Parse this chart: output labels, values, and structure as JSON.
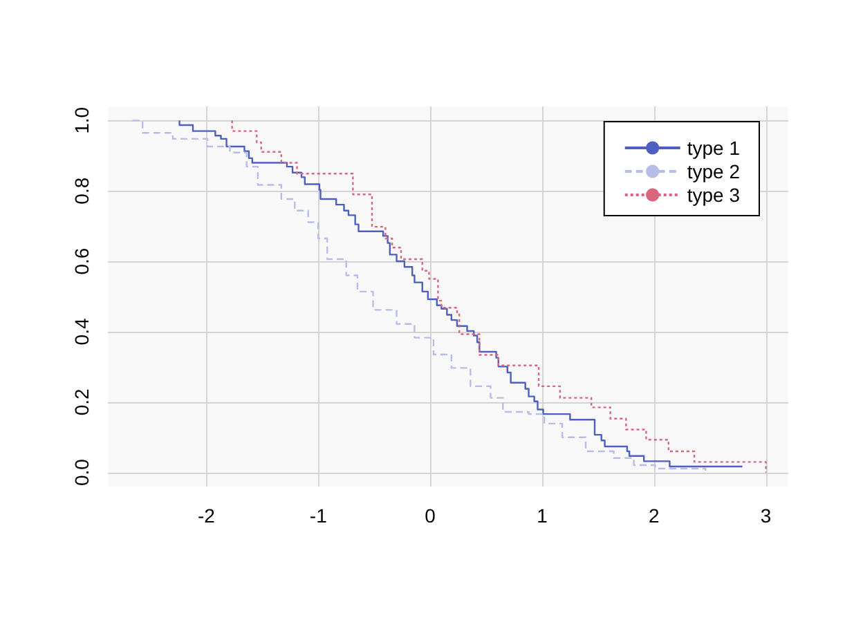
{
  "chart_data": {
    "type": "step",
    "xlim": [
      -2.88,
      3.2
    ],
    "xticks": [
      -2,
      -1,
      0,
      1,
      2,
      3
    ],
    "ylim": [
      -0.04,
      1.04
    ],
    "yticks": [
      {
        "value": 0,
        "label": "0.0"
      },
      0.2,
      0.4,
      0.6,
      0.8,
      {
        "value": 1,
        "label": "1.0"
      }
    ],
    "grid": true,
    "legend": "top right",
    "series": [
      {
        "name": "type 1",
        "color": "#4f5fc0",
        "line_style": "solid",
        "x": [
          -2.24,
          -2.24,
          -2.12,
          -1.92,
          -1.87,
          -1.82,
          -1.66,
          -1.62,
          -1.59,
          -1.28,
          -1.23,
          -1.15,
          -1.12,
          -0.99,
          -0.98,
          -0.84,
          -0.77,
          -0.73,
          -0.67,
          -0.64,
          -0.42,
          -0.38,
          -0.36,
          -0.3,
          -0.23,
          -0.16,
          -0.14,
          -0.07,
          -0.02,
          0.06,
          0.1,
          0.15,
          0.19,
          0.24,
          0.33,
          0.39,
          0.42,
          0.44,
          0.59,
          0.61,
          0.69,
          0.72,
          0.85,
          0.88,
          0.93,
          0.96,
          1.01,
          1.25,
          1.47,
          1.53,
          1.56,
          1.76,
          1.78,
          1.91,
          2.14,
          2.79
        ],
        "values": [
          1.0,
          0.987,
          0.97,
          0.957,
          0.948,
          0.926,
          0.913,
          0.893,
          0.88,
          0.869,
          0.852,
          0.839,
          0.819,
          0.803,
          0.777,
          0.761,
          0.744,
          0.731,
          0.705,
          0.685,
          0.672,
          0.652,
          0.619,
          0.6,
          0.584,
          0.56,
          0.54,
          0.514,
          0.492,
          0.475,
          0.465,
          0.448,
          0.433,
          0.416,
          0.402,
          0.389,
          0.37,
          0.343,
          0.326,
          0.301,
          0.284,
          0.255,
          0.238,
          0.216,
          0.202,
          0.179,
          0.166,
          0.15,
          0.107,
          0.091,
          0.074,
          0.06,
          0.047,
          0.032,
          0.017,
          0.017
        ]
      },
      {
        "name": "type 2",
        "color": "#b8bde8",
        "line_style": "dashed",
        "x": [
          -2.66,
          -2.57,
          -2.3,
          -1.99,
          -1.79,
          -1.64,
          -1.54,
          -1.33,
          -1.21,
          -1.09,
          -1.0,
          -0.92,
          -0.75,
          -0.65,
          -0.51,
          -0.3,
          -0.14,
          0.03,
          0.19,
          0.36,
          0.54,
          0.65,
          0.88,
          1.02,
          1.18,
          1.39,
          1.64,
          1.82,
          2.01,
          2.46
        ],
        "values": [
          1.0,
          0.965,
          0.948,
          0.926,
          0.909,
          0.869,
          0.817,
          0.777,
          0.744,
          0.711,
          0.665,
          0.606,
          0.56,
          0.514,
          0.462,
          0.422,
          0.383,
          0.335,
          0.297,
          0.245,
          0.212,
          0.172,
          0.166,
          0.139,
          0.1,
          0.06,
          0.041,
          0.021,
          0.011,
          0.005
        ]
      },
      {
        "name": "type 3",
        "color": "#d9667a",
        "line_style": "dotted",
        "x": [
          -1.77,
          -1.77,
          -1.55,
          -1.51,
          -1.33,
          -1.19,
          -0.69,
          -0.52,
          -0.4,
          -0.34,
          -0.26,
          -0.07,
          -0.01,
          0.07,
          0.1,
          0.24,
          0.26,
          0.44,
          0.61,
          0.97,
          1.16,
          1.44,
          1.61,
          1.75,
          1.93,
          2.13,
          2.36,
          3.0
        ],
        "values": [
          1.0,
          0.97,
          0.938,
          0.911,
          0.88,
          0.849,
          0.79,
          0.698,
          0.665,
          0.639,
          0.606,
          0.573,
          0.55,
          0.488,
          0.468,
          0.455,
          0.393,
          0.334,
          0.304,
          0.245,
          0.212,
          0.185,
          0.153,
          0.122,
          0.093,
          0.06,
          0.03,
          0.0
        ]
      }
    ]
  }
}
